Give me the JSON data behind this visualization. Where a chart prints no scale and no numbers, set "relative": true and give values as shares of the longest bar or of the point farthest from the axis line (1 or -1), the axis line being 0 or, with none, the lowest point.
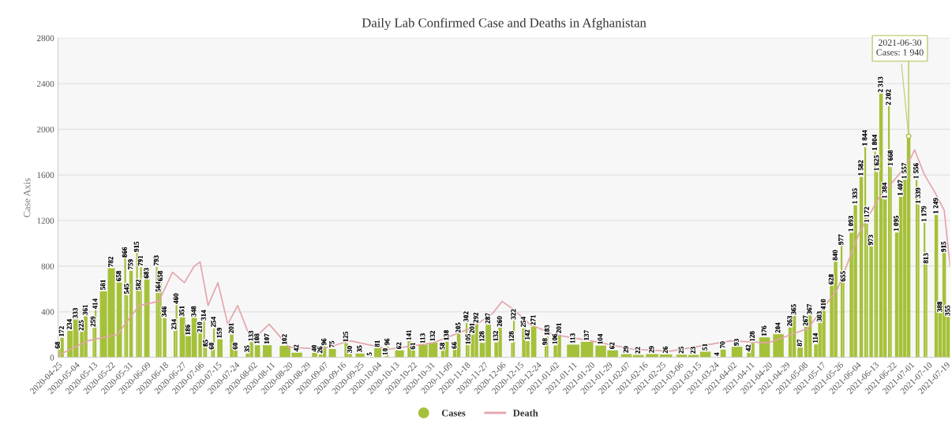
{
  "chart_data": [
    {
      "type": "bar",
      "title": "Daily Lab Confirmed Case and Deaths in Afghanistan",
      "ylabel": "Case Axis",
      "x": [
        "2020-04-25",
        "2020-04-27",
        "2020-05-01",
        "2020-05-04",
        "2020-05-07",
        "2020-05-09",
        "2020-05-13",
        "2020-05-14",
        "2020-05-18",
        "2020-05-22",
        "2020-05-26",
        "2020-05-29",
        "2020-05-30",
        "2020-06-01",
        "2020-06-04",
        "2020-06-05",
        "2020-06-06",
        "2020-06-09",
        "2020-06-14",
        "2020-06-15",
        "2020-06-16",
        "2020-06-18",
        "2020-06-23",
        "2020-06-24",
        "2020-06-27",
        "2020-06-30",
        "2020-07-03",
        "2020-07-06",
        "2020-07-08",
        "2020-07-09",
        "2020-07-12",
        "2020-07-13",
        "2020-07-16",
        "2020-07-22",
        "2020-07-24",
        "2020-07-30",
        "2020-08-01",
        "2020-08-04",
        "2020-08-09",
        "2020-08-18",
        "2020-08-24",
        "2020-09-02",
        "2020-09-05",
        "2020-09-07",
        "2020-09-11",
        "2020-09-18",
        "2020-09-20",
        "2020-09-25",
        "2020-09-30",
        "2020-10-04",
        "2020-10-08",
        "2020-10-09",
        "2020-10-15",
        "2020-10-20",
        "2020-10-22",
        "2020-10-27",
        "2020-11-01",
        "2020-11-06",
        "2020-11-08",
        "2020-11-12",
        "2020-11-14",
        "2020-11-18",
        "2020-11-19",
        "2020-11-21",
        "2020-11-23",
        "2020-11-26",
        "2020-11-29",
        "2020-12-03",
        "2020-12-05",
        "2020-12-11",
        "2020-12-12",
        "2020-12-17",
        "2020-12-19",
        "2020-12-22",
        "2020-12-28",
        "2020-12-29",
        "2021-01-02",
        "2021-01-04",
        "2021-01-11",
        "2021-01-18",
        "2021-01-25",
        "2021-01-31",
        "2021-02-07",
        "2021-02-13",
        "2021-02-20",
        "2021-02-27",
        "2021-03-07",
        "2021-03-13",
        "2021-03-19",
        "2021-03-25",
        "2021-03-28",
        "2021-04-04",
        "2021-04-10",
        "2021-04-12",
        "2021-04-18",
        "2021-04-25",
        "2021-05-01",
        "2021-05-03",
        "2021-05-06",
        "2021-05-09",
        "2021-05-11",
        "2021-05-14",
        "2021-05-16",
        "2021-05-18",
        "2021-05-22",
        "2021-05-24",
        "2021-05-27",
        "2021-05-28",
        "2021-06-01",
        "2021-06-03",
        "2021-06-06",
        "2021-06-08",
        "2021-06-09",
        "2021-06-11",
        "2021-06-13",
        "2021-06-14",
        "2021-06-16",
        "2021-06-18",
        "2021-06-20",
        "2021-06-21",
        "2021-06-24",
        "2021-06-26",
        "2021-06-28",
        "2021-06-30",
        "2021-07-04",
        "2021-07-05",
        "2021-07-08",
        "2021-07-09",
        "2021-07-14",
        "2021-07-16",
        "2021-07-18",
        "2021-07-20"
      ],
      "series": [
        {
          "name": "Cases",
          "color": "#a5c13a",
          "values": [
            68,
            172,
            234,
            333,
            225,
            361,
            259,
            414,
            581,
            782,
            658,
            866,
            545,
            759,
            915,
            582,
            791,
            683,
            793,
            564,
            658,
            346,
            234,
            460,
            351,
            186,
            348,
            210,
            314,
            85,
            60,
            254,
            159,
            201,
            60,
            35,
            133,
            108,
            107,
            102,
            42,
            40,
            26,
            96,
            75,
            125,
            30,
            35,
            5,
            81,
            10,
            96,
            62,
            141,
            61,
            113,
            132,
            58,
            138,
            66,
            205,
            302,
            105,
            201,
            292,
            128,
            287,
            132,
            260,
            128,
            322,
            254,
            142,
            271,
            98,
            183,
            106,
            201,
            113,
            137,
            104,
            62,
            29,
            22,
            29,
            26,
            25,
            23,
            51,
            4,
            70,
            93,
            42,
            128,
            176,
            204,
            263,
            365,
            87,
            267,
            367,
            114,
            303,
            410,
            628,
            840,
            977,
            655,
            1093,
            1335,
            1582,
            1844,
            1172,
            973,
            1804,
            1625,
            2313,
            1384,
            2202,
            1668,
            1095,
            1407,
            1557,
            1940,
            1556,
            1339,
            1179,
            813,
            1249,
            388,
            915,
            355
          ],
          "value_labels": [
            "68",
            "172",
            "234",
            "333",
            "225",
            "361",
            "259",
            "414",
            "581",
            "782",
            "658",
            "866",
            "545",
            "759",
            "915",
            "582",
            "791",
            "683",
            "793",
            "564",
            "658",
            "346",
            "234",
            "460",
            "351",
            "186",
            "348",
            "210",
            "314",
            "85",
            "60",
            "254",
            "159",
            "201",
            "60",
            "35",
            "133",
            "108",
            "107",
            "102",
            "42",
            "40",
            "26",
            "96",
            "75",
            "125",
            "30",
            "35",
            "5",
            "81",
            "10",
            "96",
            "62",
            "141",
            "61",
            "113",
            "132",
            "58",
            "138",
            "66",
            "205",
            "302",
            "105",
            "201",
            "292",
            "128",
            "287",
            "132",
            "260",
            "128",
            "322",
            "254",
            "142",
            "271",
            "98",
            "183",
            "106",
            "201",
            "113",
            "137",
            "104",
            "62",
            "29",
            "22",
            "29",
            "26",
            "25",
            "23",
            "51",
            "4",
            "70",
            "93",
            "42",
            "128",
            "176",
            "204",
            "263",
            "365",
            "87",
            "267",
            "367",
            "114",
            "303",
            "410",
            "628",
            "840",
            "977",
            "655",
            "1 093",
            "1 335",
            "1 582",
            "1 844",
            "1 172",
            "973",
            "1 804",
            "1 625",
            "2 313",
            "1 384",
            "2 202",
            "1 668",
            "1 095",
            "1 407",
            "1 557",
            null,
            "1 556",
            "1 339",
            "1 179",
            "813",
            "1 249",
            "388",
            "915",
            "355"
          ]
        }
      ],
      "xlim": [
        "2020-04-25",
        "2021-07-21"
      ],
      "xticks": [
        "2020-04-25",
        "2020-05-04",
        "2020-05-13",
        "2020-05-22",
        "2020-05-31",
        "2020-06-09",
        "2020-06-18",
        "2020-06-27",
        "2020-07-06",
        "2020-07-15",
        "2020-07-24",
        "2020-08-02",
        "2020-08-11",
        "2020-08-20",
        "2020-08-29",
        "2020-09-07",
        "2020-09-16",
        "2020-09-25",
        "2020-10-04",
        "2020-10-13",
        "2020-10-22",
        "2020-10-31",
        "2020-11-09",
        "2020-11-18",
        "2020-11-27",
        "2020-12-06",
        "2020-12-15",
        "2020-12-24",
        "2021-01-02",
        "2021-01-11",
        "2021-01-20",
        "2021-01-29",
        "2021-02-07",
        "2021-02-16",
        "2021-02-25",
        "2021-03-06",
        "2021-03-15",
        "2021-03-24",
        "2021-04-02",
        "2021-04-11",
        "2021-04-20",
        "2021-04-29",
        "2021-05-08",
        "2021-05-17",
        "2021-05-26",
        "2021-06-04",
        "2021-06-13",
        "2021-06-22",
        "2021-07-01",
        "2021-07-10",
        "2021-07-19"
      ],
      "ylim": [
        0,
        2800
      ],
      "yticks": [
        0,
        400,
        800,
        1200,
        1600,
        2000,
        2400,
        2800
      ],
      "grid": "y",
      "legend": "bottom",
      "ref_lines": [
        {
          "axis": "x",
          "value": "2021-06-30",
          "color": "#c5d98a"
        }
      ],
      "annotations": [
        {
          "text": "2021-06-30\nCases: 1 940",
          "x": "2021-06-30",
          "y": 1940
        }
      ]
    },
    {
      "type": "line",
      "relative": true,
      "xlim": [
        "2020-04-25",
        "2021-07-21"
      ],
      "legend": "bottom",
      "x": [
        "2020-04-25",
        "2020-05-10",
        "2020-05-25",
        "2020-06-05",
        "2020-06-15",
        "2020-06-22",
        "2020-06-28",
        "2020-07-03",
        "2020-07-06",
        "2020-07-10",
        "2020-07-15",
        "2020-07-20",
        "2020-07-25",
        "2020-08-01",
        "2020-08-10",
        "2020-08-20",
        "2020-09-05",
        "2020-09-20",
        "2020-10-10",
        "2020-11-01",
        "2020-11-20",
        "2020-12-01",
        "2020-12-06",
        "2020-12-12",
        "2020-12-20",
        "2021-01-01",
        "2021-01-20",
        "2021-02-10",
        "2021-03-01",
        "2021-04-01",
        "2021-04-20",
        "2021-05-10",
        "2021-05-25",
        "2021-06-05",
        "2021-06-15",
        "2021-06-25",
        "2021-07-01",
        "2021-07-03",
        "2021-07-08",
        "2021-07-13",
        "2021-07-18",
        "2021-07-21"
      ],
      "series": [
        {
          "name": "Death",
          "color": "#e3a4ab",
          "values": [
            0.01,
            0.08,
            0.11,
            0.25,
            0.27,
            0.41,
            0.36,
            0.44,
            0.46,
            0.25,
            0.36,
            0.16,
            0.25,
            0.08,
            0.16,
            0.05,
            0.04,
            0.08,
            0.04,
            0.07,
            0.14,
            0.21,
            0.27,
            0.23,
            0.16,
            0.11,
            0.08,
            0.04,
            0.03,
            0.08,
            0.07,
            0.14,
            0.33,
            0.6,
            0.77,
            0.88,
            0.96,
            1,
            0.88,
            0.8,
            0.71,
            0.44
          ]
        }
      ]
    }
  ]
}
